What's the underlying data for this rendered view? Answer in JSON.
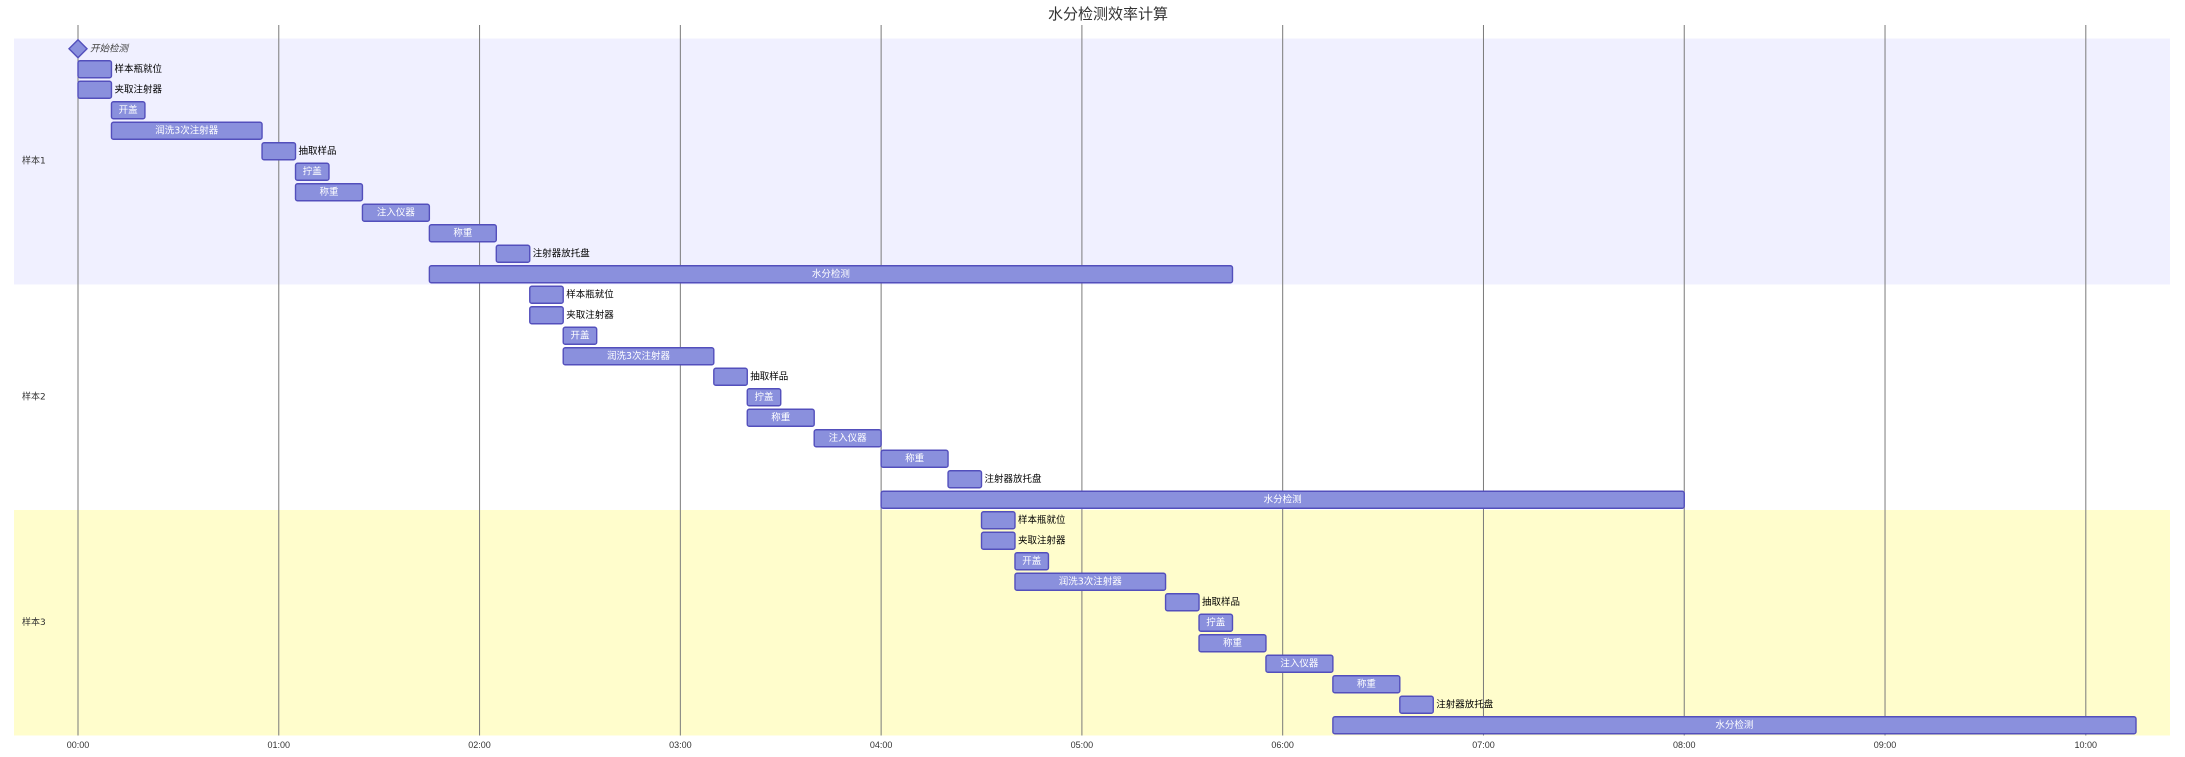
{
  "chart_data": {
    "type": "bar",
    "title": "水分检测效率计算",
    "xlim": [
      "00:00",
      "10:15"
    ],
    "x_ticks": [
      "00:00",
      "01:00",
      "02:00",
      "03:00",
      "04:00",
      "05:00",
      "06:00",
      "07:00",
      "08:00",
      "09:00",
      "10:00"
    ],
    "grid": true,
    "sections": [
      {
        "name": "样本1",
        "tasks": [
          {
            "name": "开始检测",
            "start": "00:00",
            "end": "00:00",
            "milestone": true
          },
          {
            "name": "样本瓶就位",
            "start": "00:00",
            "end": "00:10"
          },
          {
            "name": "夹取注射器",
            "start": "00:00",
            "end": "00:10"
          },
          {
            "name": "开盖",
            "start": "00:10",
            "end": "00:20"
          },
          {
            "name": "润洗3次注射器",
            "start": "00:10",
            "end": "00:55"
          },
          {
            "name": "抽取样品",
            "start": "00:55",
            "end": "01:05"
          },
          {
            "name": "拧盖",
            "start": "01:05",
            "end": "01:15"
          },
          {
            "name": "称重",
            "start": "01:05",
            "end": "01:25"
          },
          {
            "name": "注入仪器",
            "start": "01:25",
            "end": "01:45"
          },
          {
            "name": "称重",
            "start": "01:45",
            "end": "02:05"
          },
          {
            "name": "注射器放托盘",
            "start": "02:05",
            "end": "02:15"
          },
          {
            "name": "水分检测",
            "start": "01:45",
            "end": "05:45"
          }
        ]
      },
      {
        "name": "样本2",
        "tasks": [
          {
            "name": "样本瓶就位",
            "start": "02:15",
            "end": "02:25"
          },
          {
            "name": "夹取注射器",
            "start": "02:15",
            "end": "02:25"
          },
          {
            "name": "开盖",
            "start": "02:25",
            "end": "02:35"
          },
          {
            "name": "润洗3次注射器",
            "start": "02:25",
            "end": "03:10"
          },
          {
            "name": "抽取样品",
            "start": "03:10",
            "end": "03:20"
          },
          {
            "name": "拧盖",
            "start": "03:20",
            "end": "03:30"
          },
          {
            "name": "称重",
            "start": "03:20",
            "end": "03:40"
          },
          {
            "name": "注入仪器",
            "start": "03:40",
            "end": "04:00"
          },
          {
            "name": "称重",
            "start": "04:00",
            "end": "04:20"
          },
          {
            "name": "注射器放托盘",
            "start": "04:20",
            "end": "04:30"
          },
          {
            "name": "水分检测",
            "start": "04:00",
            "end": "08:00"
          }
        ]
      },
      {
        "name": "样本3",
        "tasks": [
          {
            "name": "样本瓶就位",
            "start": "04:30",
            "end": "04:40"
          },
          {
            "name": "夹取注射器",
            "start": "04:30",
            "end": "04:40"
          },
          {
            "name": "开盖",
            "start": "04:40",
            "end": "04:50"
          },
          {
            "name": "润洗3次注射器",
            "start": "04:40",
            "end": "05:25"
          },
          {
            "name": "抽取样品",
            "start": "05:25",
            "end": "05:35"
          },
          {
            "name": "拧盖",
            "start": "05:35",
            "end": "05:45"
          },
          {
            "name": "称重",
            "start": "05:35",
            "end": "05:55"
          },
          {
            "name": "注入仪器",
            "start": "05:55",
            "end": "06:15"
          },
          {
            "name": "称重",
            "start": "06:15",
            "end": "06:35"
          },
          {
            "name": "注射器放托盘",
            "start": "06:35",
            "end": "06:45"
          },
          {
            "name": "水分检测",
            "start": "06:15",
            "end": "10:15"
          }
        ]
      }
    ]
  },
  "colors": {
    "section_backgrounds": [
      "#f0f0ff",
      "#ffffff",
      "#fffdcc"
    ],
    "bar_fill": "#8a90dd",
    "bar_stroke": "#534fbc",
    "grid_line": "#7a7a7a",
    "label_inside": "#ffffff",
    "label_outside": "#000000"
  }
}
